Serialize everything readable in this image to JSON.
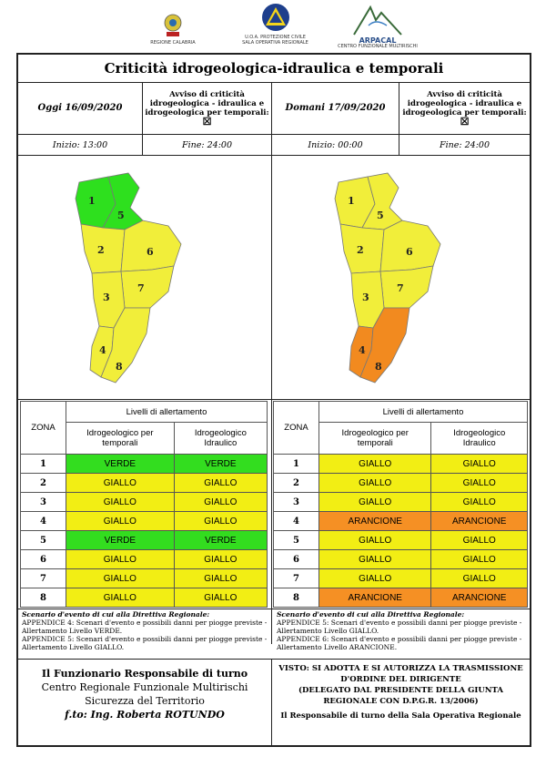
{
  "logos": {
    "regione": "REGIONE CALABRIA",
    "protezione_1": "U.O.A. PROTEZIONE CIVILE",
    "protezione_2": "SALA OPERATIVA REGIONALE",
    "arpacal": "ARPACAL",
    "arpacal_sub": "CENTRO FUNZIONALE MULTIRISCHI"
  },
  "title": "Criticità idrogeologica-idraulica e temporali",
  "left": {
    "day": "Oggi 16/09/2020",
    "avviso": "Avviso di criticità idrogeologica - idraulica e idrogeologica per temporali:",
    "checkbox": "☒",
    "inizio": "Inizio: 13:00",
    "fine": "Fine: 24:00"
  },
  "right": {
    "day": "Domani 17/09/2020",
    "avviso": "Avviso di criticità idrogeologica - idraulica e idrogeologica per temporali:",
    "checkbox": "☒",
    "inizio": "Inizio: 00:00",
    "fine": "Fine: 24:00"
  },
  "table_headers": {
    "zona": "ZONA",
    "livelli": "Livelli di allertamento",
    "col1": "Idrogeologico per temporali",
    "col2": "Idrogeologico Idraulico"
  },
  "zone_labels": [
    "1",
    "2",
    "3",
    "4",
    "5",
    "6",
    "7",
    "8"
  ],
  "colors": {
    "VERDE": "#33dd1f",
    "GIALLO": "#f2ee14",
    "ARANCIONE": "#f59024",
    "map_yellow": "#f1ee3a",
    "map_orange": "#f28a1f",
    "map_green": "#2ee01e"
  },
  "left_levels": [
    [
      "VERDE",
      "VERDE"
    ],
    [
      "GIALLO",
      "GIALLO"
    ],
    [
      "GIALLO",
      "GIALLO"
    ],
    [
      "GIALLO",
      "GIALLO"
    ],
    [
      "VERDE",
      "VERDE"
    ],
    [
      "GIALLO",
      "GIALLO"
    ],
    [
      "GIALLO",
      "GIALLO"
    ],
    [
      "GIALLO",
      "GIALLO"
    ]
  ],
  "right_levels": [
    [
      "GIALLO",
      "GIALLO"
    ],
    [
      "GIALLO",
      "GIALLO"
    ],
    [
      "GIALLO",
      "GIALLO"
    ],
    [
      "ARANCIONE",
      "ARANCIONE"
    ],
    [
      "GIALLO",
      "GIALLO"
    ],
    [
      "GIALLO",
      "GIALLO"
    ],
    [
      "GIALLO",
      "GIALLO"
    ],
    [
      "ARANCIONE",
      "ARANCIONE"
    ]
  ],
  "scenario_left": {
    "heading": "Scenario d'evento di cui alla Direttiva Regionale:",
    "line1": "APPENDICE 4: Scenari d'evento e possibili danni per piogge previste - Allertamento Livello VERDE.",
    "line2": "APPENDICE 5: Scenari d'evento e possibili danni per piogge previste - Allertamento Livello GIALLO."
  },
  "scenario_right": {
    "heading": "Scenario d'evento di cui alla Direttiva Regionale:",
    "line1": "APPENDICE 5: Scenari d'evento e possibili danni per piogge previste - Allertamento Livello GIALLO.",
    "line2": "APPENDICE 6: Scenari d'evento e possibili danni per piogge previste - Allertamento Livello ARANCIONE."
  },
  "footer_left": {
    "l1": "Il Funzionario Responsabile di turno",
    "l2": "Centro Regionale Funzionale Multirischi",
    "l3": "Sicurezza del Territorio",
    "l4": "f.to: Ing. Roberta ROTUNDO"
  },
  "footer_right": {
    "l1": "VISTO: SI ADOTTA E SI AUTORIZZA LA TRASMISSIONE",
    "l2": "D'ORDINE DEL DIRIGENTE",
    "l3": "(DELEGATO DAL PRESIDENTE DELLA GIUNTA",
    "l4": "REGIONALE CON D.P.G.R. 13/2006)",
    "l5": "Il Responsabile di turno della Sala Operativa Regionale"
  }
}
